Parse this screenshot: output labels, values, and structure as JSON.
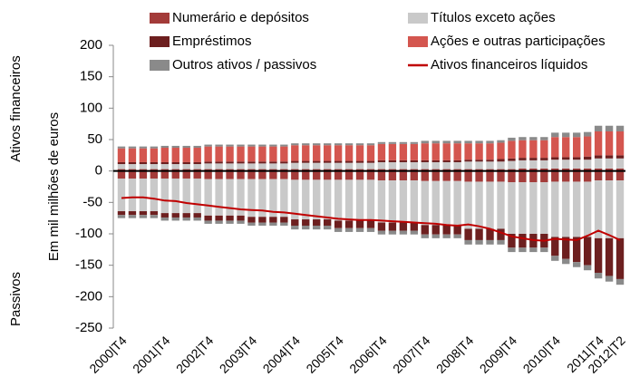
{
  "chart_data": {
    "type": "bar",
    "y_axis_label": "Em mil milhões de euros",
    "annotations": [
      "Ativos financeiros",
      "Passivos"
    ],
    "categories": [
      "2000|T4",
      null,
      null,
      null,
      "2001|T4",
      null,
      null,
      null,
      "2002|T4",
      null,
      null,
      null,
      "2003|T4",
      null,
      null,
      null,
      "2004|T4",
      null,
      null,
      null,
      "2005|T4",
      null,
      null,
      null,
      "2006|T4",
      null,
      null,
      null,
      "2007|T4",
      null,
      null,
      null,
      "2008|T4",
      null,
      null,
      null,
      "2009|T4",
      null,
      null,
      null,
      "2010|T4",
      null,
      null,
      null,
      "2011|T4",
      null,
      "2012|T2"
    ],
    "ylim": [
      -250,
      200
    ],
    "yticks": [
      -250,
      -200,
      -150,
      -100,
      -50,
      0,
      50,
      100,
      150,
      200
    ],
    "series": [
      {
        "name": "Numerário e depósitos",
        "color": "#a33b39",
        "values": [
          3,
          3,
          3,
          3,
          3,
          3,
          3,
          3,
          3,
          3,
          3,
          3,
          3,
          3,
          3,
          3,
          3,
          3,
          3,
          3,
          3,
          3,
          3,
          3,
          3,
          3,
          3,
          3,
          3,
          3,
          3,
          3,
          3,
          3,
          3,
          3,
          3,
          4,
          4,
          4,
          4,
          4,
          4,
          4,
          4,
          4,
          4
        ],
        "liabilities": [
          -12,
          -12,
          -12,
          -12,
          -12,
          -12,
          -12,
          -12,
          -13,
          -13,
          -13,
          -13,
          -13,
          -13,
          -13,
          -13,
          -14,
          -14,
          -14,
          -14,
          -14,
          -14,
          -14,
          -14,
          -15,
          -15,
          -15,
          -15,
          -16,
          -16,
          -16,
          -16,
          -17,
          -17,
          -17,
          -17,
          -18,
          -18,
          -18,
          -18,
          -17,
          -17,
          -17,
          -17,
          -15,
          -15,
          -15
        ]
      },
      {
        "name": "Títulos exceto ações",
        "color": "#c9c9c9",
        "values": [
          8,
          8,
          8,
          8,
          8,
          8,
          8,
          8,
          9,
          9,
          9,
          9,
          9,
          9,
          9,
          9,
          10,
          10,
          10,
          10,
          10,
          10,
          10,
          10,
          11,
          11,
          11,
          11,
          11,
          11,
          11,
          11,
          12,
          12,
          12,
          12,
          13,
          13,
          13,
          13,
          14,
          14,
          14,
          14,
          16,
          16,
          16
        ],
        "liabilities": [
          -52,
          -52,
          -52,
          -52,
          -55,
          -55,
          -55,
          -55,
          -58,
          -58,
          -58,
          -58,
          -60,
          -60,
          -60,
          -60,
          -63,
          -63,
          -63,
          -63,
          -65,
          -65,
          -65,
          -65,
          -67,
          -67,
          -67,
          -67,
          -70,
          -70,
          -70,
          -70,
          -75,
          -75,
          -75,
          -75,
          -82,
          -82,
          -82,
          -82,
          -88,
          -88,
          -88,
          -88,
          -92,
          -92,
          -92
        ]
      },
      {
        "name": "Empréstimos",
        "color": "#6d1f1f",
        "values": [
          3,
          3,
          3,
          3,
          3,
          3,
          3,
          3,
          3,
          3,
          3,
          3,
          3,
          3,
          3,
          3,
          3,
          3,
          3,
          3,
          3,
          3,
          3,
          3,
          3,
          3,
          3,
          3,
          3,
          3,
          3,
          3,
          3,
          3,
          3,
          4,
          4,
          4,
          4,
          4,
          4,
          4,
          4,
          5,
          5,
          5,
          5
        ],
        "liabilities": [
          -6,
          -6,
          -6,
          -6,
          -7,
          -7,
          -7,
          -7,
          -8,
          -8,
          -8,
          -8,
          -9,
          -9,
          -9,
          -9,
          -10,
          -10,
          -10,
          -10,
          -12,
          -12,
          -12,
          -12,
          -13,
          -13,
          -13,
          -13,
          -15,
          -15,
          -15,
          -15,
          -18,
          -18,
          -18,
          -18,
          -22,
          -22,
          -22,
          -22,
          -30,
          -35,
          -40,
          -45,
          -55,
          -60,
          -65
        ]
      },
      {
        "name": "Ações e outras participações",
        "color": "#d4564f",
        "values": [
          22,
          22,
          22,
          22,
          23,
          23,
          23,
          23,
          24,
          24,
          24,
          24,
          24,
          24,
          24,
          24,
          25,
          25,
          25,
          25,
          25,
          25,
          25,
          25,
          26,
          26,
          26,
          26,
          27,
          27,
          27,
          27,
          26,
          26,
          26,
          26,
          28,
          28,
          28,
          28,
          32,
          32,
          32,
          32,
          38,
          38,
          38
        ]
      },
      {
        "name": "Outros ativos / passivos",
        "color": "#8a8a8a",
        "values": [
          3,
          3,
          3,
          3,
          3,
          3,
          3,
          3,
          3,
          3,
          3,
          3,
          3,
          3,
          3,
          3,
          3,
          3,
          3,
          3,
          3,
          3,
          3,
          3,
          3,
          3,
          3,
          3,
          4,
          4,
          4,
          4,
          4,
          4,
          4,
          4,
          5,
          5,
          5,
          5,
          7,
          7,
          7,
          7,
          9,
          9,
          9
        ],
        "liabilities": [
          -5,
          -5,
          -5,
          -5,
          -5,
          -5,
          -5,
          -5,
          -5,
          -5,
          -5,
          -5,
          -5,
          -5,
          -5,
          -5,
          -6,
          -6,
          -6,
          -6,
          -6,
          -6,
          -6,
          -6,
          -6,
          -6,
          -6,
          -6,
          -6,
          -6,
          -6,
          -6,
          -7,
          -7,
          -7,
          -7,
          -7,
          -7,
          -7,
          -7,
          -8,
          -8,
          -8,
          -8,
          -9,
          -9,
          -9
        ]
      }
    ],
    "net": {
      "name": "Ativos financeiros líquidos",
      "color": "#c00000",
      "values": [
        -43,
        -42,
        -42,
        -44,
        -47,
        -48,
        -51,
        -53,
        -55,
        -57,
        -59,
        -61,
        -62,
        -63,
        -65,
        -66,
        -68,
        -70,
        -72,
        -74,
        -76,
        -77,
        -78,
        -78,
        -79,
        -80,
        -81,
        -82,
        -83,
        -84,
        -86,
        -87,
        -85,
        -88,
        -92,
        -98,
        -104,
        -107,
        -110,
        -111,
        -108,
        -109,
        -110,
        -103,
        -95,
        -102,
        -110
      ]
    }
  }
}
